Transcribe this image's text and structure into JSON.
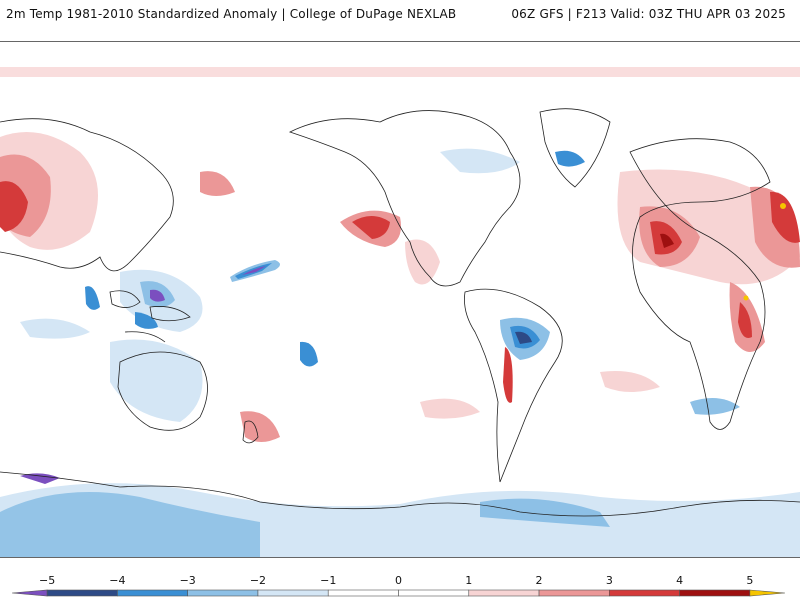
{
  "header": {
    "title_left": "2m Temp 1981-2010 Standardized Anomaly | College of DuPage NEXLAB",
    "title_right": "06Z GFS | F213 Valid: 03Z THU APR 03 2025"
  },
  "colors": {
    "m5": "#7b4fbf",
    "m4": "#2d4a86",
    "m3": "#3a8fd4",
    "m2": "#8dc0e6",
    "m1": "#d4e6f5",
    "zero": "#ffffff",
    "p1": "#f7d4d4",
    "p2": "#eb9797",
    "p3": "#d43a3a",
    "p4": "#9e1010",
    "p5": "#f5c400"
  },
  "colorbar": {
    "ticks": [
      {
        "value": -5,
        "label": "−5"
      },
      {
        "value": -4,
        "label": "−4"
      },
      {
        "value": -3,
        "label": "−3"
      },
      {
        "value": -2,
        "label": "−2"
      },
      {
        "value": -1,
        "label": "−1"
      },
      {
        "value": 0,
        "label": "0"
      },
      {
        "value": 1,
        "label": "1"
      },
      {
        "value": 2,
        "label": "2"
      },
      {
        "value": 3,
        "label": "3"
      },
      {
        "value": 4,
        "label": "4"
      },
      {
        "value": 5,
        "label": "5"
      }
    ]
  }
}
